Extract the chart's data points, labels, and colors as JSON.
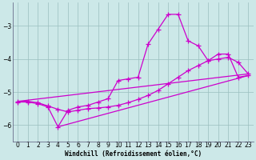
{
  "background_color": "#cce8e8",
  "plot_bg_color": "#cce8e8",
  "grid_color": "#9bbfbf",
  "line_color": "#cc00cc",
  "marker": "+",
  "markersize": 4,
  "linewidth": 0.9,
  "xlabel": "Windchill (Refroidissement éolien,°C)",
  "xlabel_fontsize": 5.5,
  "tick_fontsize": 5.5,
  "xlim": [
    -0.5,
    23.5
  ],
  "ylim": [
    -6.5,
    -2.3
  ],
  "yticks": [
    -6,
    -5,
    -4,
    -3
  ],
  "xticks": [
    0,
    1,
    2,
    3,
    4,
    5,
    6,
    7,
    8,
    9,
    10,
    11,
    12,
    13,
    14,
    15,
    16,
    17,
    18,
    19,
    20,
    21,
    22,
    23
  ],
  "line1_x": [
    0,
    1,
    2,
    3,
    4,
    5,
    6,
    7,
    8,
    9,
    10,
    11,
    12,
    13,
    14,
    15,
    16,
    17,
    18,
    19,
    20,
    21,
    22,
    23
  ],
  "line1_y": [
    -5.3,
    -5.3,
    -5.35,
    -5.45,
    -6.05,
    -5.55,
    -5.45,
    -5.4,
    -5.3,
    -5.2,
    -4.65,
    -4.6,
    -4.55,
    -3.55,
    -3.1,
    -2.65,
    -2.65,
    -3.45,
    -3.6,
    -4.05,
    -3.85,
    -3.85,
    -4.55,
    -4.5
  ],
  "line2_x": [
    0,
    1,
    2,
    3,
    4,
    5,
    6,
    7,
    8,
    9,
    10,
    11,
    12,
    13,
    14,
    15,
    16,
    17,
    18,
    19,
    20,
    21,
    22,
    23
  ],
  "line2_y": [
    -5.28,
    -5.28,
    -5.32,
    -5.42,
    -5.52,
    -5.6,
    -5.55,
    -5.5,
    -5.48,
    -5.45,
    -5.4,
    -5.32,
    -5.22,
    -5.1,
    -4.95,
    -4.75,
    -4.55,
    -4.35,
    -4.2,
    -4.05,
    -4.0,
    -3.95,
    -4.1,
    -4.45
  ],
  "line3_x": [
    0,
    23
  ],
  "line3_y": [
    -5.28,
    -4.45
  ],
  "line4_x": [
    4,
    23
  ],
  "line4_y": [
    -6.05,
    -4.5
  ]
}
